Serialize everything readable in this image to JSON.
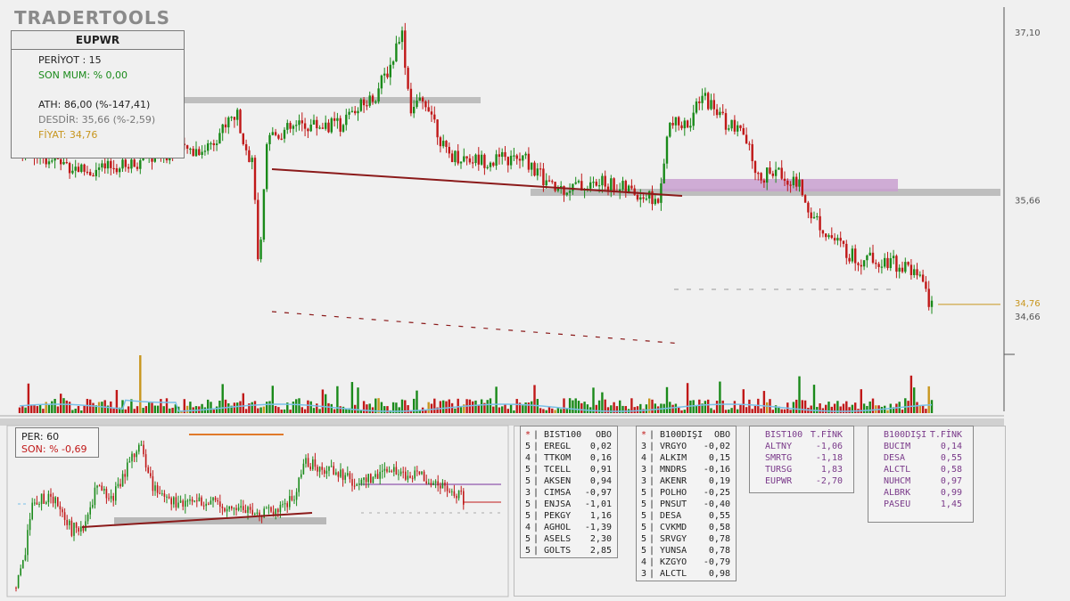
{
  "app": {
    "logo": "TRADERTOOLS"
  },
  "colors": {
    "up": "#1a8a1a",
    "down": "#c01818",
    "trend": "#8b1a1a",
    "zone_gray": "#b8b8b8",
    "zone_purple": "#c9a0d0",
    "price": "#c8961e",
    "vol_ma": "#79c0e8"
  },
  "info": {
    "symbol": "EUPWR",
    "period": "PERİYOT : 15",
    "last_candle": "SON MUM: % 0,00",
    "ath": "ATH: 86,00 (%-147,41)",
    "desdir": "DESDİR: 35,66 (%-2,59)",
    "price": "FİYAT: 34,76"
  },
  "mini": {
    "per": "PER: 60",
    "son": "SON: % -0,69"
  },
  "chart_data": {
    "type": "candlestick",
    "timeframe": "15",
    "y_ticks": [
      "37,10",
      "35,66",
      "34,66"
    ],
    "price_label": "34,76",
    "price": 34.76,
    "resistance": 35.66,
    "ath": 86.0,
    "ylim": [
      33.9,
      37.3
    ]
  },
  "tables": [
    {
      "header": [
        "*",
        "BIST100",
        "OBO"
      ],
      "rows": [
        [
          "5",
          "EREGL",
          "0,02"
        ],
        [
          "4",
          "TTKOM",
          "0,16"
        ],
        [
          "5",
          "TCELL",
          "0,91"
        ],
        [
          "5",
          "AKSEN",
          "0,94"
        ],
        [
          "3",
          "CIMSA",
          "-0,97"
        ],
        [
          "5",
          "ENJSA",
          "-1,01"
        ],
        [
          "5",
          "PEKGY",
          "1,16"
        ],
        [
          "4",
          "AGHOL",
          "-1,39"
        ],
        [
          "5",
          "ASELS",
          "2,30"
        ],
        [
          "5",
          "GOLTS",
          "2,85"
        ]
      ]
    },
    {
      "header": [
        "*",
        "B100DIŞI",
        "OBO"
      ],
      "rows": [
        [
          "3",
          "VRGYO",
          "-0,02"
        ],
        [
          "4",
          "ALKIM",
          "0,15"
        ],
        [
          "3",
          "MNDRS",
          "-0,16"
        ],
        [
          "3",
          "AKENR",
          "0,19"
        ],
        [
          "5",
          "POLHO",
          "-0,25"
        ],
        [
          "5",
          "PNSUT",
          "-0,40"
        ],
        [
          "5",
          "DESA",
          "0,55"
        ],
        [
          "5",
          "CVKMD",
          "0,58"
        ],
        [
          "5",
          "SRVGY",
          "0,78"
        ],
        [
          "5",
          "YUNSA",
          "0,78"
        ],
        [
          "4",
          "KZGYO",
          "-0,79"
        ],
        [
          "3",
          "ALCTL",
          "0,98"
        ]
      ]
    }
  ],
  "fink": [
    {
      "header": [
        "BIST100",
        "T.FİNK"
      ],
      "rows": [
        [
          "ALTNY",
          "-1,06"
        ],
        [
          "SMRTG",
          "-1,18"
        ],
        [
          "TURSG",
          "1,83"
        ],
        [
          "EUPWR",
          "-2,70"
        ]
      ]
    },
    {
      "header": [
        "B100DIŞI",
        "T.FİNK"
      ],
      "rows": [
        [
          "BUCIM",
          "0,14"
        ],
        [
          "DESA",
          "0,55"
        ],
        [
          "ALCTL",
          "0,58"
        ],
        [
          "NUHCM",
          "0,97"
        ],
        [
          "ALBRK",
          "0,99"
        ],
        [
          "PASEU",
          "1,45"
        ]
      ]
    }
  ]
}
